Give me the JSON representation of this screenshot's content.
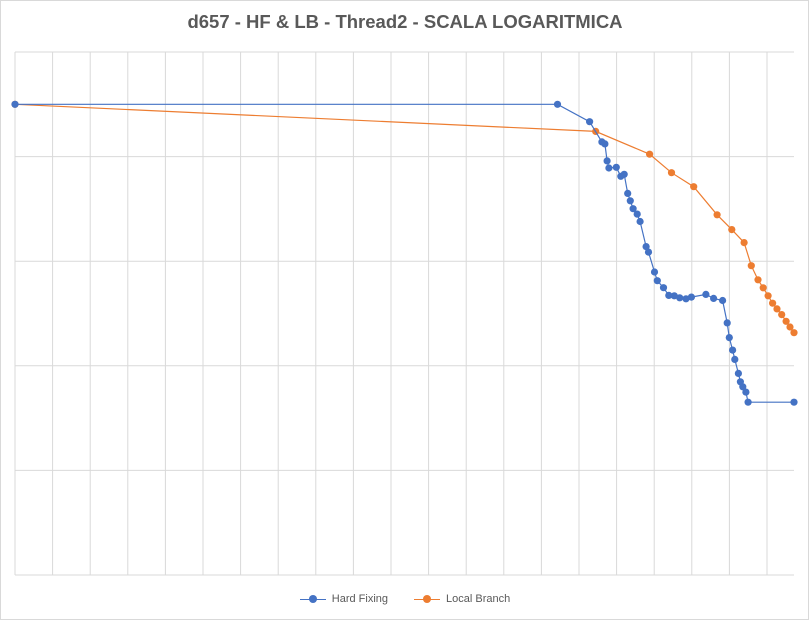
{
  "chart_data": {
    "type": "line",
    "title": "d657 - HF & LB - Thread2  - SCALA LOGARITMICA",
    "xlabel": "",
    "ylabel": "",
    "y_scale": "log",
    "grid": true,
    "legend_position": "bottom",
    "tick_labels_shown": false,
    "series": [
      {
        "name": "Hard Fixing",
        "color": "#4472c4",
        "points": [
          [
            0.0,
            0.0
          ],
          [
            0.6964,
            0.0
          ],
          [
            0.7376,
            -0.1667
          ],
          [
            0.7534,
            -0.3591
          ],
          [
            0.7573,
            -0.3782
          ],
          [
            0.7601,
            -0.5413
          ],
          [
            0.7624,
            -0.6086
          ],
          [
            0.7719,
            -0.6022
          ],
          [
            0.7776,
            -0.6886
          ],
          [
            0.782,
            -0.6695
          ],
          [
            0.7865,
            -0.8519
          ],
          [
            0.7899,
            -0.9222
          ],
          [
            0.7935,
            -0.9984
          ],
          [
            0.7987,
            -1.0496
          ],
          [
            0.8025,
            -1.1209
          ],
          [
            0.8102,
            -1.3608
          ],
          [
            0.8132,
            -1.4128
          ],
          [
            0.8209,
            -1.6031
          ],
          [
            0.8245,
            -1.6863
          ],
          [
            0.8325,
            -1.7535
          ],
          [
            0.8393,
            -1.8272
          ],
          [
            0.8463,
            -1.8305
          ],
          [
            0.8533,
            -1.8497
          ],
          [
            0.8613,
            -1.8592
          ],
          [
            0.8683,
            -1.8432
          ],
          [
            0.8869,
            -1.8177
          ],
          [
            0.8968,
            -1.8561
          ],
          [
            0.9084,
            -1.8753
          ],
          [
            0.9142,
            -2.0896
          ],
          [
            0.9169,
            -2.2304
          ],
          [
            0.9212,
            -2.3496
          ],
          [
            0.924,
            -2.4384
          ],
          [
            0.9286,
            -2.5728
          ],
          [
            0.9312,
            -2.6528
          ],
          [
            0.9343,
            -2.7008
          ],
          [
            0.9382,
            -2.7519
          ],
          [
            0.9411,
            -2.8479
          ],
          [
            1.0,
            -2.8479
          ]
        ]
      },
      {
        "name": "Local Branch",
        "color": "#ed7d31",
        "points": [
          [
            0.0,
            0.0
          ],
          [
            0.7454,
            -0.2591
          ],
          [
            0.8146,
            -0.4767
          ],
          [
            0.8428,
            -0.6536
          ],
          [
            0.8712,
            -0.788
          ],
          [
            0.9013,
            -1.0567
          ],
          [
            0.9201,
            -1.1975
          ],
          [
            0.9359,
            -1.3223
          ],
          [
            0.9452,
            -1.543
          ],
          [
            0.9538,
            -1.6774
          ],
          [
            0.9604,
            -1.7543
          ],
          [
            0.9667,
            -1.8311
          ],
          [
            0.9725,
            -1.9015
          ],
          [
            0.9782,
            -1.9559
          ],
          [
            0.9842,
            -2.0104
          ],
          [
            0.9898,
            -2.0744
          ],
          [
            0.9949,
            -2.1288
          ],
          [
            1.0,
            -2.1832
          ]
        ]
      }
    ]
  }
}
